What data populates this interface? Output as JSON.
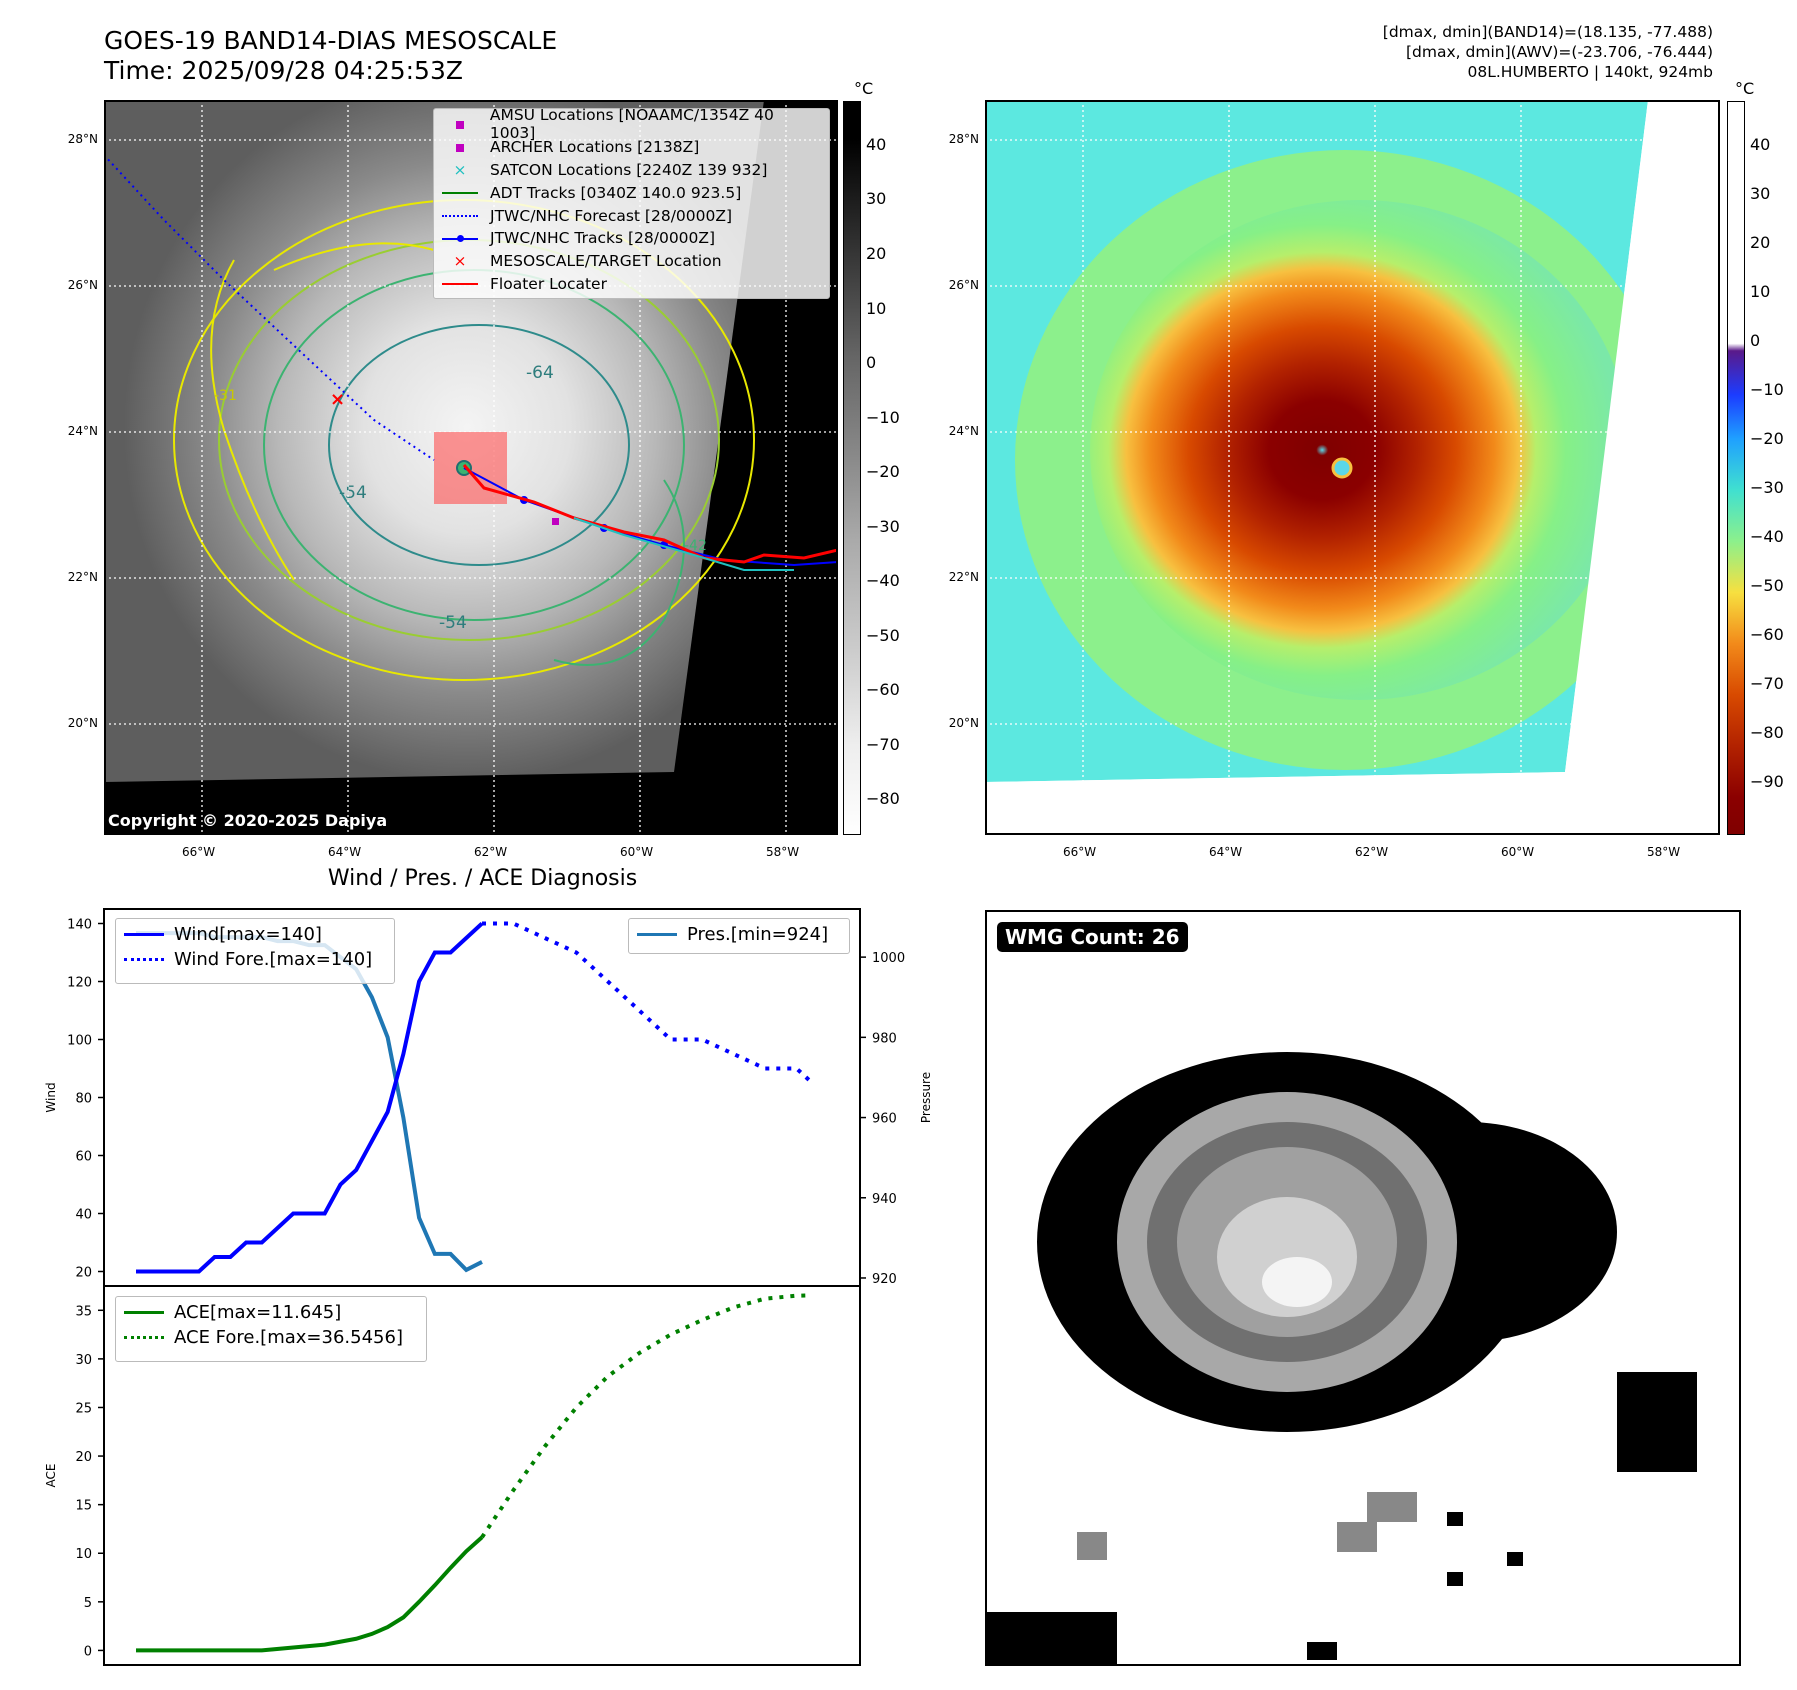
{
  "header": {
    "title_line1": "GOES-19 BAND14-DIAS MESOSCALE",
    "title_line2": "Time: 2025/09/28 04:25:53Z",
    "info_line1": "[dmax, dmin](BAND14)=(18.135, -77.488)",
    "info_line2": "[dmax, dmin](AWV)=(-23.706, -76.444)",
    "info_line3": "08L.HUMBERTO | 140kt, 924mb"
  },
  "map_common": {
    "lat_ticks": [
      "28°N",
      "26°N",
      "24°N",
      "22°N",
      "20°N"
    ],
    "lon_ticks": [
      "66°W",
      "64°W",
      "62°W",
      "60°W",
      "58°W"
    ]
  },
  "ir_panel": {
    "copyright": "Copyright © 2020-2025 Dapiya",
    "colorbar_unit": "°C",
    "colorbar_ticks": [
      "40",
      "30",
      "20",
      "10",
      "0",
      "−10",
      "−20",
      "−30",
      "−40",
      "−50",
      "−60",
      "−70",
      "−80"
    ],
    "contour_labels": [
      "-64",
      "-54",
      "-54",
      "-31",
      "-42"
    ],
    "legend": [
      {
        "label": "AMSU Locations [NOAAMC/1354Z 40 1003]",
        "color": "#c000c0",
        "marker": "square"
      },
      {
        "label": "ARCHER Locations [2138Z]",
        "color": "#c000c0",
        "marker": "square"
      },
      {
        "label": "SATCON Locations [2240Z 139 932]",
        "color": "#20c0c0",
        "marker": "x"
      },
      {
        "label": "ADT Tracks [0340Z 140.0 923.5]",
        "color": "#008000",
        "marker": "line"
      },
      {
        "label": "JTWC/NHC Forecast [28/0000Z]",
        "color": "#0000ff",
        "marker": "dotted"
      },
      {
        "label": "JTWC/NHC Tracks [28/0000Z]",
        "color": "#0000ff",
        "marker": "line-dot"
      },
      {
        "label": "MESOSCALE/TARGET Location",
        "color": "#ff0000",
        "marker": "x"
      },
      {
        "label": "Floater Locater",
        "color": "#ff0000",
        "marker": "line"
      }
    ]
  },
  "color_panel": {
    "colorbar_unit": "°C",
    "colorbar_ticks": [
      "40",
      "30",
      "20",
      "10",
      "0",
      "−10",
      "−20",
      "−30",
      "−40",
      "−50",
      "−60",
      "−70",
      "−80",
      "−90"
    ]
  },
  "diagnosis": {
    "title": "Wind / Pres. / ACE Diagnosis",
    "wind_ylabel": "Wind",
    "pressure_ylabel": "Pressure",
    "ace_ylabel": "ACE",
    "wind_legend": [
      "Wind[max=140]",
      "Wind Fore.[max=140]"
    ],
    "pres_legend": "Pres.[min=924]",
    "ace_legend": [
      "ACE[max=11.645]",
      "ACE Fore.[max=36.5456]"
    ]
  },
  "wmg_panel": {
    "label": "WMG Count: 26"
  },
  "chart_data": [
    {
      "type": "line",
      "title": "Wind / Pres. / ACE Diagnosis",
      "ylabel": "Wind",
      "ylim": [
        15,
        145
      ],
      "yticks": [
        20,
        40,
        60,
        80,
        100,
        120,
        140
      ],
      "x_index_range": [
        0,
        44
      ],
      "series": [
        {
          "name": "Wind[max=140]",
          "color": "#0000ff",
          "style": "solid",
          "x": [
            0,
            4,
            5,
            6,
            7,
            8,
            9,
            10,
            11,
            12,
            13,
            14,
            15,
            16,
            17,
            18,
            19,
            20,
            21,
            22
          ],
          "values": [
            20,
            20,
            25,
            25,
            30,
            30,
            35,
            40,
            40,
            40,
            50,
            55,
            65,
            75,
            95,
            120,
            130,
            130,
            135,
            140
          ]
        },
        {
          "name": "Wind Fore.[max=140]",
          "color": "#0000ff",
          "style": "dotted",
          "x": [
            22,
            24,
            26,
            28,
            30,
            32,
            34,
            36,
            38,
            40,
            42,
            43
          ],
          "values": [
            140,
            140,
            135,
            130,
            120,
            110,
            100,
            100,
            95,
            90,
            90,
            85
          ]
        }
      ]
    },
    {
      "type": "line",
      "ylabel": "Pressure",
      "ylim": [
        918,
        1012
      ],
      "yticks": [
        920,
        940,
        960,
        980,
        1000
      ],
      "series": [
        {
          "name": "Pres.[min=924]",
          "color": "#1f77b4",
          "style": "solid",
          "x": [
            0,
            4,
            5,
            6,
            7,
            8,
            9,
            10,
            11,
            12,
            13,
            14,
            15,
            16,
            17,
            18,
            19,
            20,
            21,
            22
          ],
          "values": [
            1006,
            1006,
            1005,
            1005,
            1005,
            1005,
            1004,
            1004,
            1003,
            1003,
            1000,
            997,
            990,
            980,
            960,
            935,
            926,
            926,
            922,
            924
          ]
        }
      ]
    },
    {
      "type": "line",
      "ylabel": "ACE",
      "ylim": [
        -1.5,
        37.5
      ],
      "yticks": [
        0,
        5,
        10,
        15,
        20,
        25,
        30,
        35
      ],
      "series": [
        {
          "name": "ACE[max=11.645]",
          "color": "#008000",
          "style": "solid",
          "x": [
            0,
            8,
            10,
            12,
            14,
            15,
            16,
            17,
            18,
            19,
            20,
            21,
            22
          ],
          "values": [
            0,
            0,
            0.3,
            0.6,
            1.2,
            1.7,
            2.4,
            3.4,
            5.0,
            6.7,
            8.5,
            10.2,
            11.645
          ]
        },
        {
          "name": "ACE Fore.[max=36.5456]",
          "color": "#008000",
          "style": "dotted",
          "x": [
            22,
            24,
            26,
            28,
            30,
            32,
            34,
            36,
            38,
            40,
            42,
            43
          ],
          "values": [
            11.645,
            16.5,
            21,
            25,
            28.2,
            30.6,
            32.5,
            34,
            35.3,
            36.2,
            36.5,
            36.5456
          ]
        }
      ]
    }
  ]
}
